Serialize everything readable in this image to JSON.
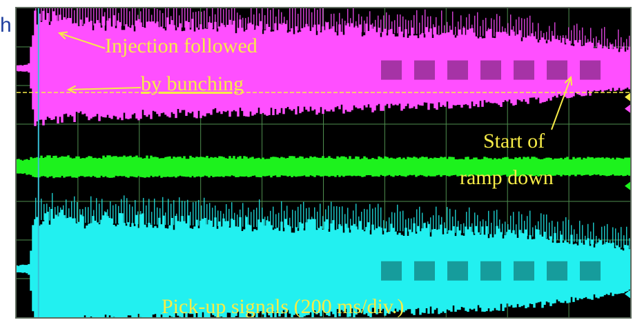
{
  "page": {
    "cut_off_text": "h"
  },
  "colors": {
    "background": "#000000",
    "grid": "#4f8f4f",
    "channel_1": "#ff4fff",
    "channel_2": "#1df21d",
    "channel_3": "#22f0f0",
    "cursor": "#38c0d8",
    "annotation": "#f7ec47"
  },
  "annotations": {
    "injection_line1": "Injection followed",
    "injection_line2": "by bunching",
    "ramp_line1": "Start of",
    "ramp_line2": "ramp down",
    "caption": "Pick-up signals (200 ms/div.)"
  },
  "chart_data": {
    "type": "line",
    "title": "",
    "xlabel": "Pick-up signals (200 ms/div.)",
    "ylabel": "",
    "grid": true,
    "divisions": {
      "x": 10,
      "y": 8
    },
    "x_unit": "ms",
    "x_per_division": 200,
    "xlim": [
      0,
      2000
    ],
    "events": [
      {
        "label": "Injection followed by bunching",
        "x": 40
      },
      {
        "label": "Start of ramp down",
        "x": 1640
      }
    ],
    "series": [
      {
        "name": "",
        "trace": "channel_1",
        "baseline_div": 1.55,
        "envelope_x": [
          0,
          40,
          60,
          200,
          1000,
          1640,
          2000
        ],
        "envelope_half_div": [
          0.08,
          0.1,
          1.55,
          1.4,
          1.2,
          1.0,
          0.55
        ]
      },
      {
        "name": "",
        "trace": "channel_2",
        "baseline_div": 4.1,
        "envelope_x": [
          0,
          40,
          60,
          2000
        ],
        "envelope_half_div": [
          0.2,
          0.22,
          0.3,
          0.25
        ]
      },
      {
        "name": "",
        "trace": "channel_3",
        "baseline_div": 6.75,
        "envelope_x": [
          0,
          40,
          60,
          200,
          1000,
          1640,
          2000
        ],
        "envelope_half_div": [
          0.1,
          0.12,
          1.6,
          1.5,
          1.3,
          1.1,
          0.65
        ]
      }
    ]
  }
}
